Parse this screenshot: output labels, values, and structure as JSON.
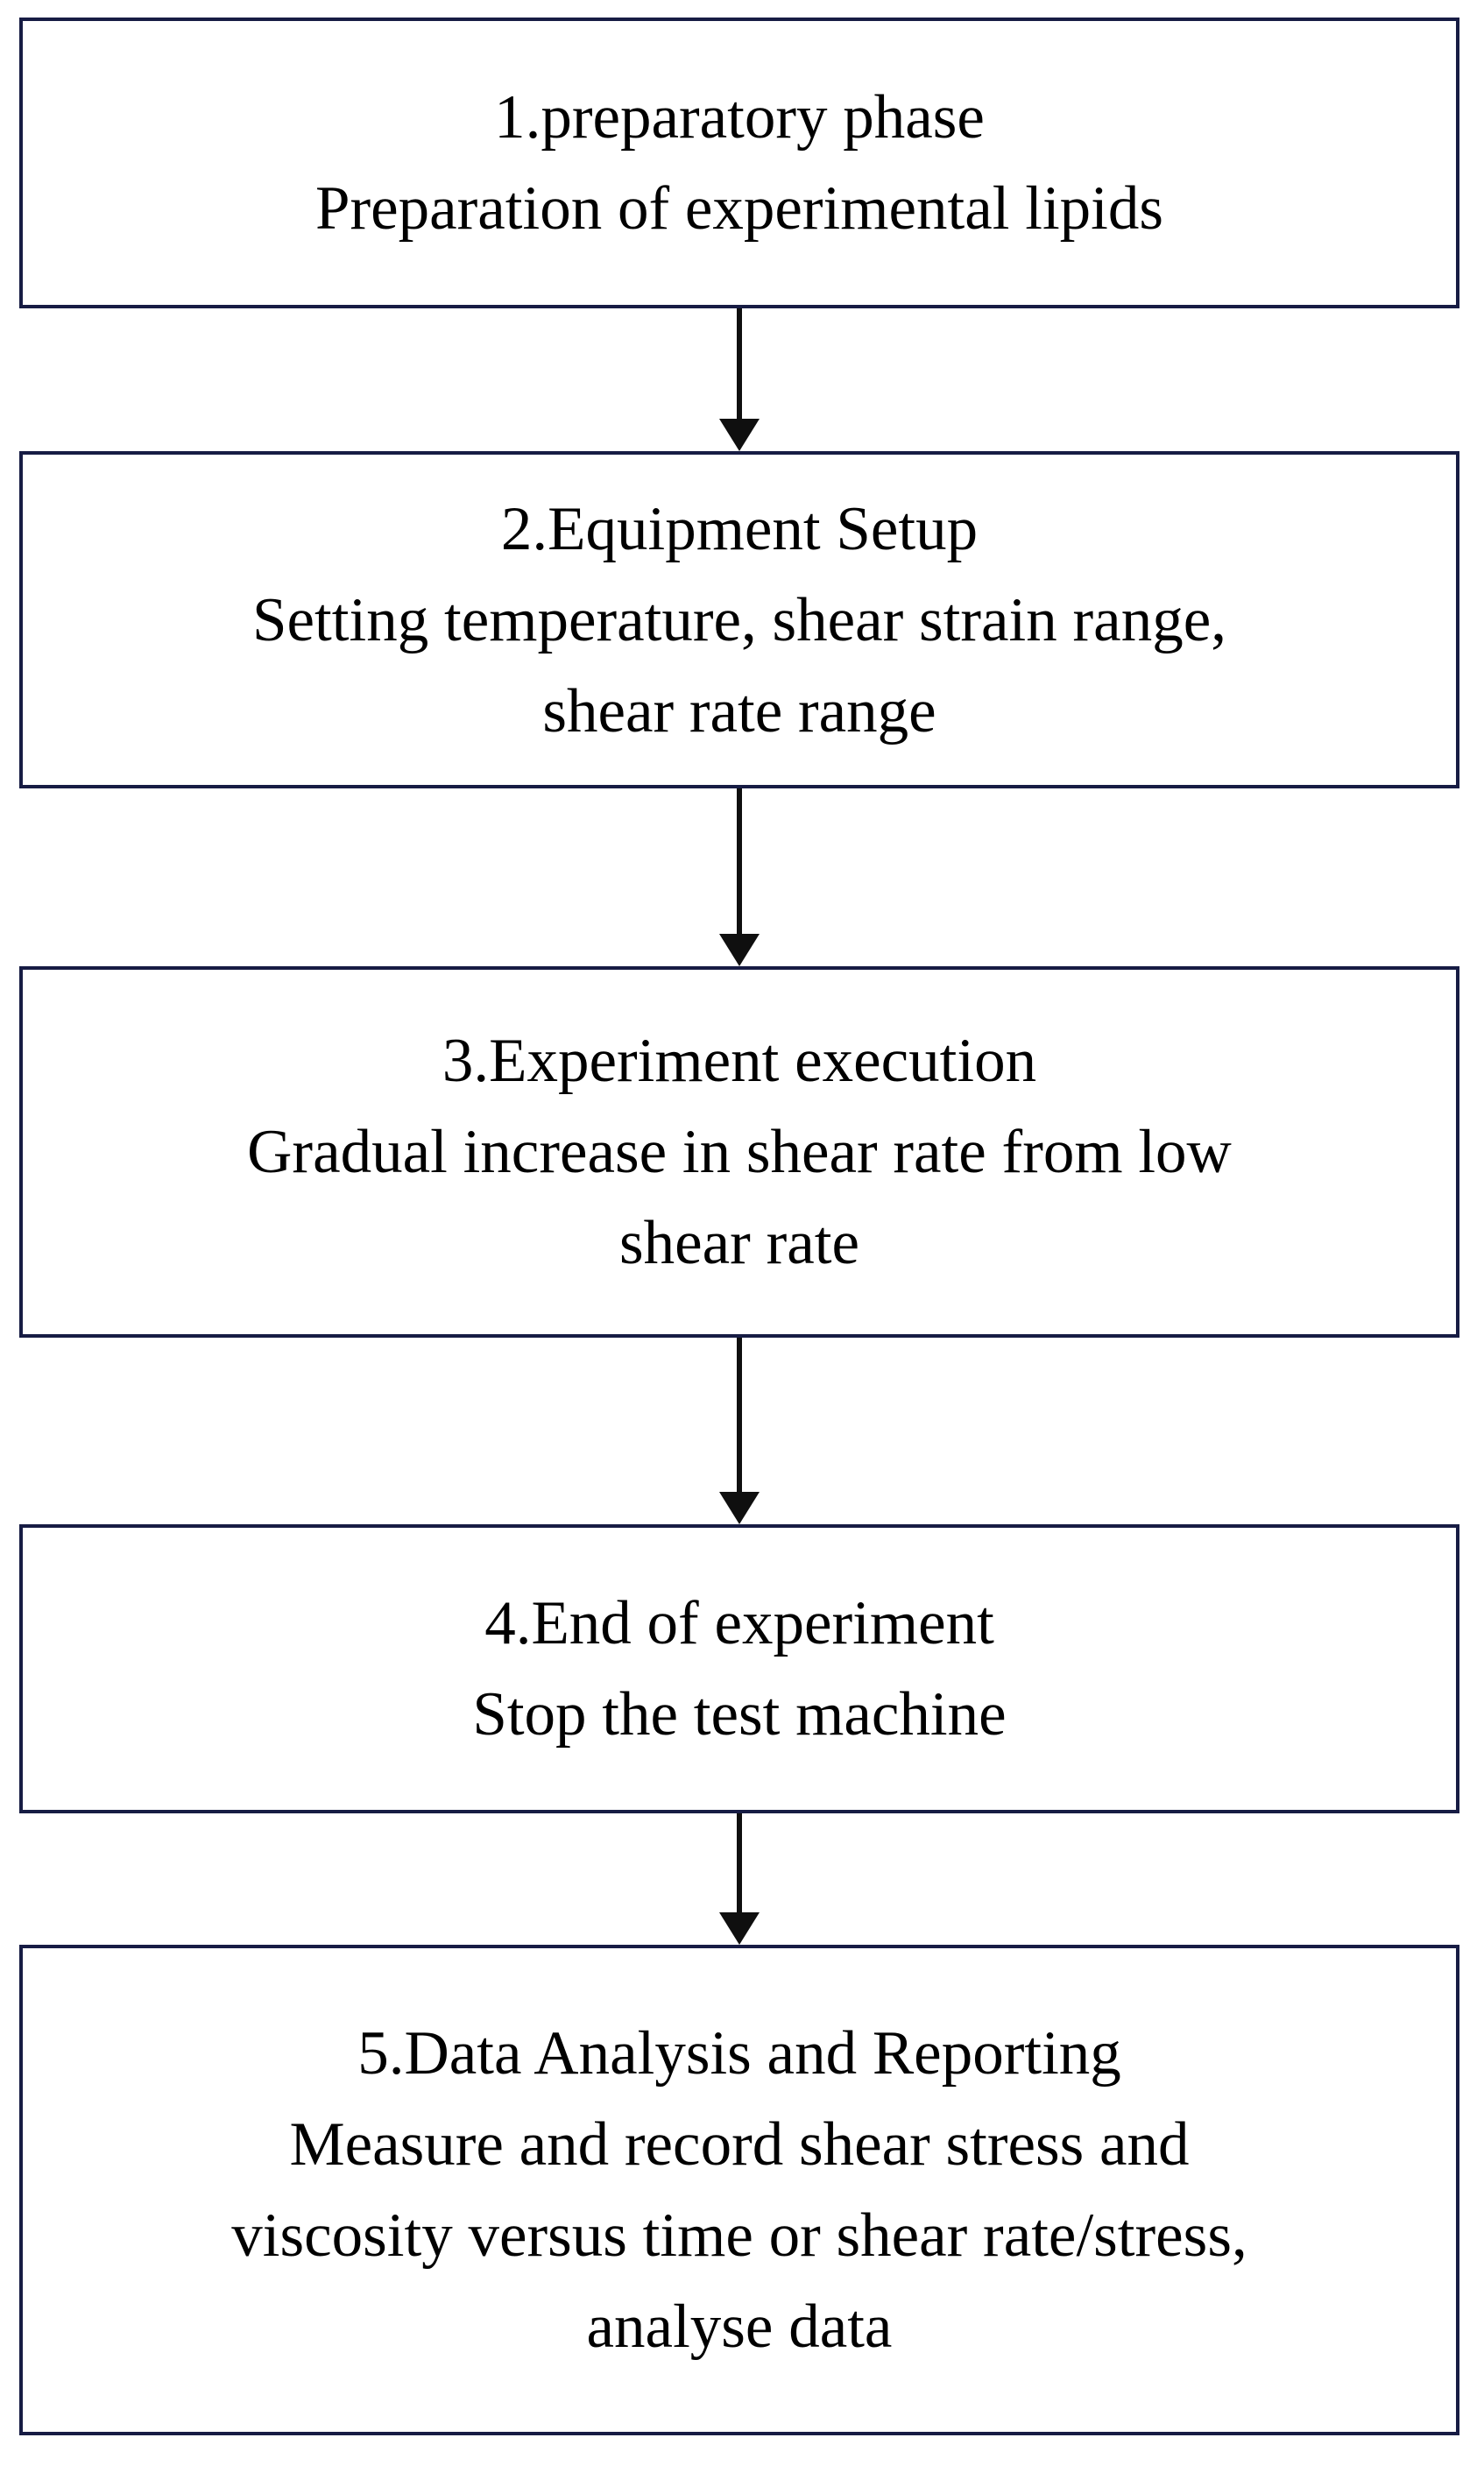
{
  "figure": {
    "type": "flowchart",
    "direction": "top-down"
  },
  "colors": {
    "box_border": "#171c44",
    "arrow": "#0f0f0f",
    "text": "#000000",
    "background": "#ffffff"
  },
  "steps": [
    {
      "lines": [
        "1.preparatory phase",
        "Preparation of experimental lipids"
      ]
    },
    {
      "lines": [
        "2.Equipment Setup",
        "Setting temperature, shear strain range,",
        "shear rate range"
      ]
    },
    {
      "lines": [
        "3.Experiment execution",
        "Gradual increase in shear rate from low",
        "shear rate"
      ]
    },
    {
      "lines": [
        "4.End of experiment",
        "Stop the test machine"
      ]
    },
    {
      "lines": [
        "5.Data Analysis and Reporting",
        "Measure and record shear stress and",
        "viscosity versus time or shear rate/stress,",
        "analyse data"
      ]
    }
  ]
}
